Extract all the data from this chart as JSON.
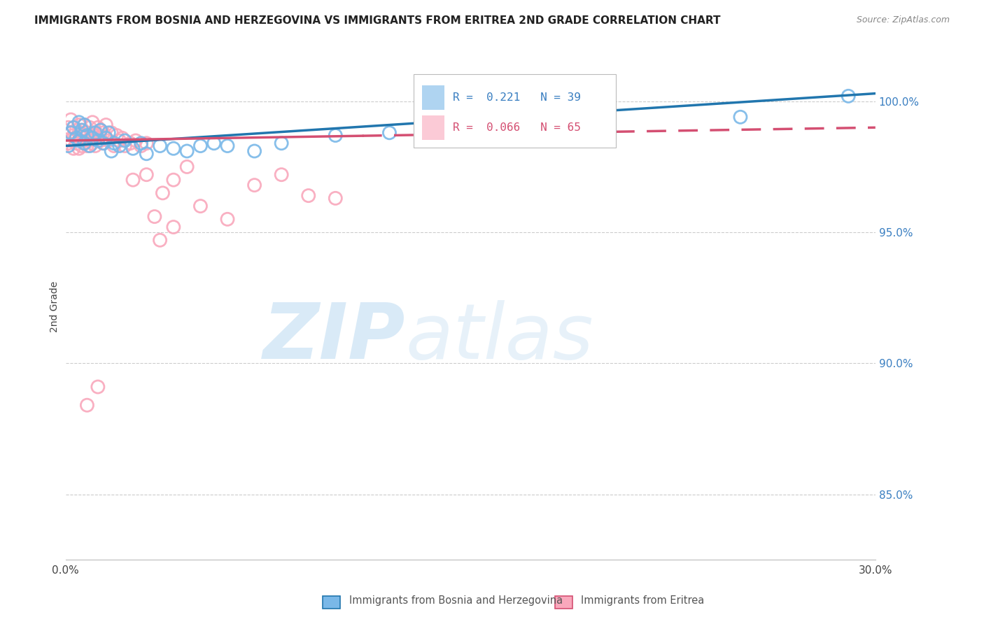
{
  "title": "IMMIGRANTS FROM BOSNIA AND HERZEGOVINA VS IMMIGRANTS FROM ERITREA 2ND GRADE CORRELATION CHART",
  "source": "Source: ZipAtlas.com",
  "ylabel": "2nd Grade",
  "yaxis_labels": [
    "85.0%",
    "90.0%",
    "95.0%",
    "100.0%"
  ],
  "yaxis_values": [
    0.85,
    0.9,
    0.95,
    1.0
  ],
  "xlim": [
    0.0,
    0.3
  ],
  "ylim": [
    0.825,
    1.018
  ],
  "legend_bosnia_R": "0.221",
  "legend_bosnia_N": "39",
  "legend_eritrea_R": "0.066",
  "legend_eritrea_N": "65",
  "color_bosnia": "#7ab8e8",
  "color_eritrea": "#f9a8bc",
  "color_bosnia_line": "#2176ae",
  "color_eritrea_line": "#d44f72",
  "legend_label_bosnia": "Immigrants from Bosnia and Herzegovina",
  "legend_label_eritrea": "Immigrants from Eritrea",
  "bosnia_scatter_x": [
    0.001,
    0.002,
    0.003,
    0.004,
    0.005,
    0.005,
    0.006,
    0.007,
    0.007,
    0.008,
    0.009,
    0.01,
    0.011,
    0.012,
    0.013,
    0.014,
    0.015,
    0.016,
    0.017,
    0.018,
    0.02,
    0.022,
    0.025,
    0.028,
    0.03,
    0.035,
    0.04,
    0.045,
    0.05,
    0.055,
    0.06,
    0.07,
    0.08,
    0.1,
    0.12,
    0.15,
    0.2,
    0.25,
    0.29
  ],
  "bosnia_scatter_y": [
    0.983,
    0.988,
    0.99,
    0.986,
    0.992,
    0.985,
    0.989,
    0.991,
    0.984,
    0.987,
    0.983,
    0.986,
    0.988,
    0.985,
    0.989,
    0.984,
    0.986,
    0.988,
    0.981,
    0.984,
    0.983,
    0.985,
    0.982,
    0.984,
    0.98,
    0.983,
    0.982,
    0.981,
    0.983,
    0.984,
    0.983,
    0.981,
    0.984,
    0.987,
    0.988,
    0.99,
    0.992,
    0.994,
    1.002
  ],
  "eritrea_scatter_x": [
    0.001,
    0.001,
    0.002,
    0.002,
    0.002,
    0.003,
    0.003,
    0.003,
    0.004,
    0.004,
    0.004,
    0.005,
    0.005,
    0.005,
    0.006,
    0.006,
    0.006,
    0.007,
    0.007,
    0.007,
    0.008,
    0.008,
    0.008,
    0.009,
    0.009,
    0.01,
    0.01,
    0.01,
    0.011,
    0.011,
    0.012,
    0.012,
    0.013,
    0.013,
    0.014,
    0.014,
    0.015,
    0.015,
    0.016,
    0.017,
    0.018,
    0.019,
    0.02,
    0.021,
    0.022,
    0.024,
    0.026,
    0.028,
    0.03,
    0.033,
    0.036,
    0.04,
    0.045,
    0.05,
    0.06,
    0.07,
    0.08,
    0.09,
    0.1,
    0.03,
    0.025,
    0.035,
    0.04,
    0.012,
    0.008
  ],
  "eritrea_scatter_y": [
    0.984,
    0.99,
    0.985,
    0.988,
    0.993,
    0.987,
    0.982,
    0.99,
    0.986,
    0.989,
    0.984,
    0.988,
    0.982,
    0.991,
    0.985,
    0.989,
    0.983,
    0.986,
    0.991,
    0.984,
    0.988,
    0.983,
    0.987,
    0.985,
    0.99,
    0.984,
    0.988,
    0.992,
    0.987,
    0.983,
    0.986,
    0.99,
    0.985,
    0.989,
    0.984,
    0.988,
    0.986,
    0.991,
    0.985,
    0.988,
    0.983,
    0.987,
    0.985,
    0.986,
    0.983,
    0.984,
    0.985,
    0.983,
    0.984,
    0.956,
    0.965,
    0.97,
    0.975,
    0.96,
    0.955,
    0.968,
    0.972,
    0.964,
    0.963,
    0.972,
    0.97,
    0.947,
    0.952,
    0.891,
    0.884
  ]
}
